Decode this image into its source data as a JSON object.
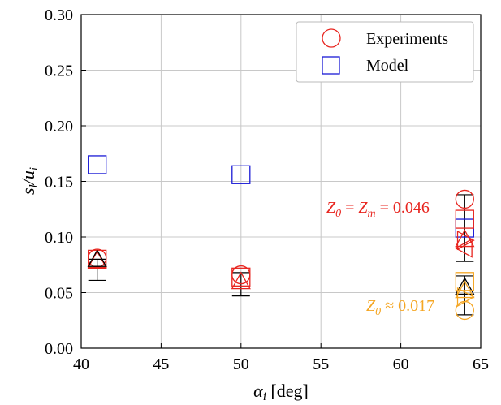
{
  "chart_data": {
    "type": "scatter",
    "xlabel": "αi [deg]",
    "ylabel": "sl/ui",
    "xlim": [
      40,
      65
    ],
    "ylim": [
      0,
      0.3
    ],
    "x_ticks": [
      "40",
      "45",
      "50",
      "55",
      "60",
      "65"
    ],
    "y_ticks": [
      "0.00",
      "0.05",
      "0.10",
      "0.15",
      "0.20",
      "0.25",
      "0.30"
    ],
    "grid": true,
    "legend_position": "top-right",
    "legend": [
      {
        "label": "Experiments",
        "marker": "circle",
        "color": "#e8251f"
      },
      {
        "label": "Model",
        "marker": "square",
        "color": "#1a1ad6"
      }
    ],
    "colors": {
      "red": "#e8251f",
      "blue": "#1a1ad6",
      "orange": "#f5a623",
      "black": "#000000"
    },
    "series": [
      {
        "name": "Experiments",
        "marker": "circle",
        "color": "#e8251f",
        "points": [
          {
            "x": 41,
            "y": 0.081
          },
          {
            "x": 50,
            "y": 0.066
          },
          {
            "x": 64,
            "y": 0.134
          }
        ]
      },
      {
        "name": "Model",
        "marker": "square",
        "color": "#1a1ad6",
        "points": [
          {
            "x": 41,
            "y": 0.165
          },
          {
            "x": 50,
            "y": 0.156
          },
          {
            "x": 64,
            "y": 0.108
          }
        ]
      },
      {
        "marker": "square",
        "color": "#e8251f",
        "points": [
          {
            "x": 41,
            "y": 0.08
          },
          {
            "x": 50,
            "y": 0.064
          },
          {
            "x": 64,
            "y": 0.116
          }
        ]
      },
      {
        "marker": "triangle-up",
        "color": "#e8251f",
        "points": [
          {
            "x": 41,
            "y": 0.079
          },
          {
            "x": 50,
            "y": 0.06
          },
          {
            "x": 64,
            "y": 0.098
          }
        ]
      },
      {
        "marker": "triangle-left",
        "color": "#e8251f",
        "points": [
          {
            "x": 64,
            "y": 0.09
          }
        ]
      },
      {
        "marker": "triangle-right",
        "color": "#e8251f",
        "points": [
          {
            "x": 64,
            "y": 0.097
          }
        ]
      },
      {
        "marker": "triangle-up",
        "color": "#000000",
        "points": [
          {
            "x": 41,
            "y": 0.08
          },
          {
            "x": 64,
            "y": 0.055
          }
        ]
      },
      {
        "marker": "circle",
        "color": "#f5a623",
        "points": [
          {
            "x": 64,
            "y": 0.034
          }
        ]
      },
      {
        "marker": "square",
        "color": "#f5a623",
        "points": [
          {
            "x": 64,
            "y": 0.06
          }
        ]
      },
      {
        "marker": "triangle-up",
        "color": "#f5a623",
        "points": [
          {
            "x": 64,
            "y": 0.052
          }
        ]
      },
      {
        "marker": "triangle-right",
        "color": "#f5a623",
        "points": [
          {
            "x": 64,
            "y": 0.046
          }
        ]
      }
    ],
    "error_bars": [
      {
        "x": 41,
        "low": 0.061,
        "high": 0.08,
        "color": "#000000"
      },
      {
        "x": 50,
        "low": 0.047,
        "high": 0.068,
        "color": "#000000"
      },
      {
        "x": 64,
        "low": 0.03,
        "high": 0.065,
        "color": "#000000"
      },
      {
        "x": 64,
        "low": 0.078,
        "high": 0.138,
        "color": "#000000"
      }
    ],
    "annotations": [
      {
        "text": "Z0 = Zm = 0.046",
        "color": "#e8251f",
        "x": 55.5,
        "y": 0.121
      },
      {
        "text": "Z0 ≈ 0.017",
        "color": "#f5a623",
        "x": 57.9,
        "y": 0.034
      }
    ]
  }
}
